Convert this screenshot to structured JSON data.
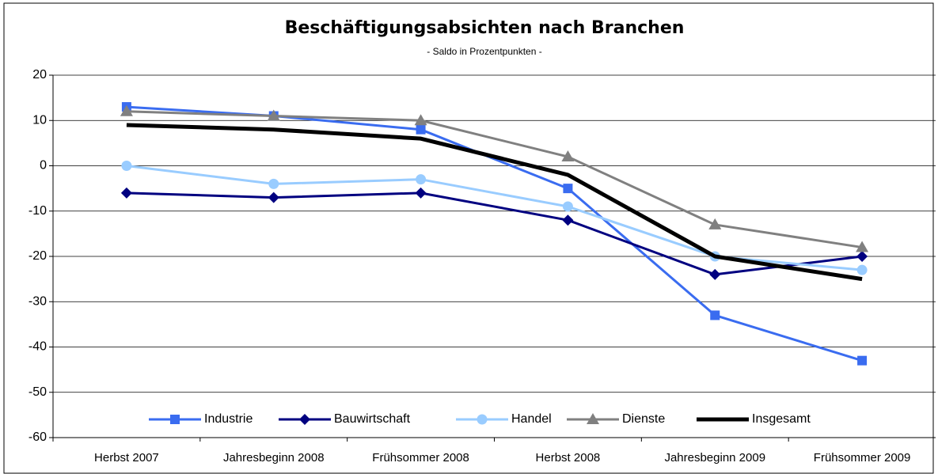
{
  "chart_data": {
    "type": "line",
    "title": "Beschäftigungsabsichten nach Branchen",
    "subtitle": "- Saldo in Prozentpunkten -",
    "categories": [
      "Herbst 2007",
      "Jahresbeginn 2008",
      "Frühsommer 2008",
      "Herbst 2008",
      "Jahresbeginn 2009",
      "Frühsommer 2009"
    ],
    "series": [
      {
        "name": "Industrie",
        "color": "#3a6cf0",
        "marker": "square",
        "values": [
          13,
          11,
          8,
          -5,
          -33,
          -43
        ]
      },
      {
        "name": "Bauwirtschaft",
        "color": "#000080",
        "marker": "diamond",
        "values": [
          -6,
          -7,
          -6,
          -12,
          -24,
          -20
        ]
      },
      {
        "name": "Handel",
        "color": "#99ccff",
        "marker": "circle",
        "values": [
          0,
          -4,
          -3,
          -9,
          -20,
          -23
        ]
      },
      {
        "name": "Dienste",
        "color": "#808080",
        "marker": "triangle",
        "values": [
          12,
          11,
          10,
          2,
          -13,
          -18
        ]
      },
      {
        "name": "Insgesamt",
        "color": "#000000",
        "marker": "none",
        "values": [
          9,
          8,
          6,
          -2,
          -20,
          -25
        ]
      }
    ],
    "ylim": [
      -60,
      20
    ],
    "yticks": [
      -60,
      -50,
      -40,
      -30,
      -20,
      -10,
      0,
      10,
      20
    ],
    "grid": true,
    "legend": "bottom"
  }
}
